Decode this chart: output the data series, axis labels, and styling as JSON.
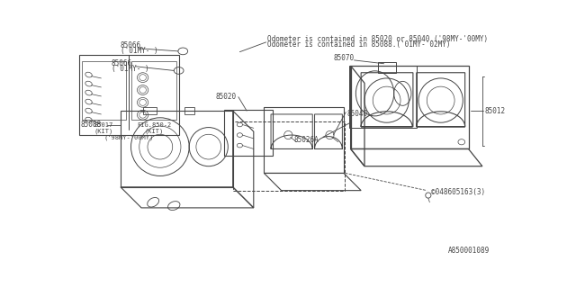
{
  "bg_color": "#ffffff",
  "line_color": "#444444",
  "text_color": "#444444",
  "diagram_id": "A850001089",
  "notes": [
    "Odometer is contained in 85020 or 85040.('98MY-'00MY)",
    "Odometer is contained in 85088.('01MY-'02MY)"
  ],
  "font_size": 6.0
}
